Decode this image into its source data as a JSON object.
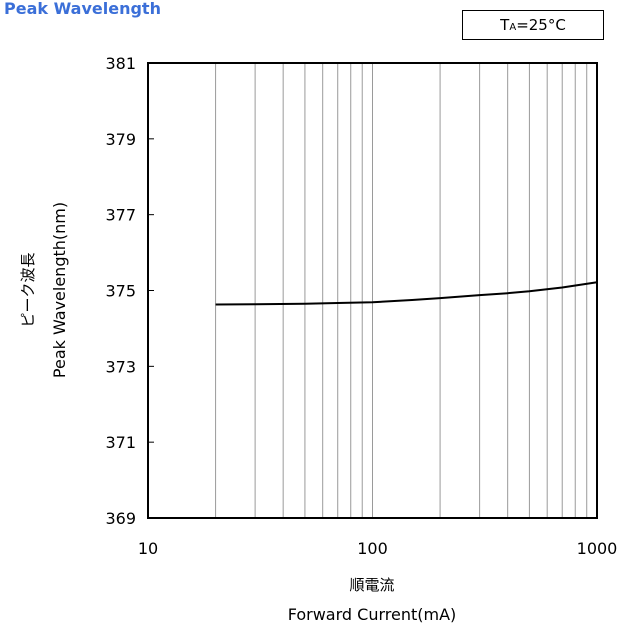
{
  "header": {
    "title": "Peak Wavelength",
    "condition_prefix": "T",
    "condition_sub": "A",
    "condition_suffix": "=25°C"
  },
  "chart_data": {
    "type": "line",
    "title": "Peak Wavelength",
    "xlabel": "Forward Current(mA)",
    "xlabel_jp": "順電流",
    "ylabel": "Peak Wavelength(nm)",
    "ylabel_jp": "ピーク波長",
    "xscale": "log",
    "xlim": [
      10,
      1000
    ],
    "ylim": [
      369,
      381
    ],
    "x_ticks": [
      10,
      100,
      1000
    ],
    "y_ticks": [
      369,
      371,
      373,
      375,
      377,
      379,
      381
    ],
    "grid": "vertical minor log gridlines",
    "series": [
      {
        "x": [
          20,
          30,
          50,
          70,
          100,
          150,
          200,
          300,
          400,
          500,
          700,
          1000
        ],
        "y": [
          374.63,
          374.64,
          374.65,
          374.67,
          374.69,
          374.75,
          374.8,
          374.88,
          374.93,
          374.98,
          375.08,
          375.22
        ]
      }
    ]
  }
}
